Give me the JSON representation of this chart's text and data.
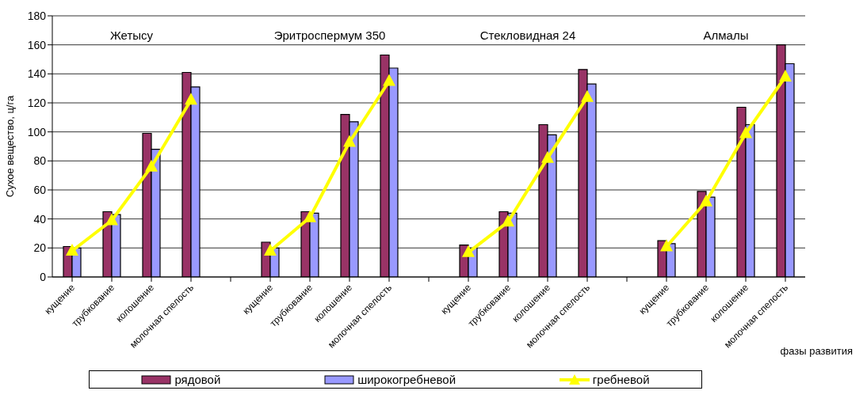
{
  "chart_data": {
    "type": "bar",
    "ylabel": "Сухое вещество, ц/га",
    "xlabel": "фазы развития",
    "categories": [
      "кущение",
      "трубкование",
      "колошение",
      "молочная спелость",
      null,
      "кущение",
      "трубкование",
      "колошение",
      "молочная спелость",
      null,
      "кущение",
      "трубкование",
      "колошение",
      "молочная спелость",
      null,
      "кущение",
      "трубкование",
      "колошение",
      "молочная спелость"
    ],
    "series": [
      {
        "name": "рядовой",
        "color": "#993366",
        "values": [
          21,
          45,
          99,
          141,
          null,
          24,
          45,
          112,
          153,
          null,
          22,
          45,
          105,
          143,
          null,
          25,
          59,
          117,
          160
        ]
      },
      {
        "name": "широкогребневой",
        "color": "#9999ff",
        "values": [
          20,
          43,
          88,
          131,
          null,
          20,
          44,
          107,
          144,
          null,
          20,
          44,
          98,
          133,
          null,
          23,
          55,
          105,
          147
        ]
      },
      {
        "name": "гребневой",
        "type": "line",
        "color": "#ffff00",
        "marker": "triangle",
        "values": [
          18,
          39,
          76,
          122,
          null,
          18,
          41,
          93,
          135,
          null,
          17,
          38,
          82,
          124,
          null,
          21,
          52,
          99,
          138
        ]
      }
    ],
    "annotations": [
      "Жетысу",
      "Эритроспермум 350",
      "Стекловидная 24",
      "Алмалы"
    ],
    "ylim": [
      0,
      180
    ],
    "yticks": [
      0,
      20,
      40,
      60,
      80,
      100,
      120,
      140,
      160,
      180
    ],
    "grid": "y",
    "legend": "bottom"
  }
}
